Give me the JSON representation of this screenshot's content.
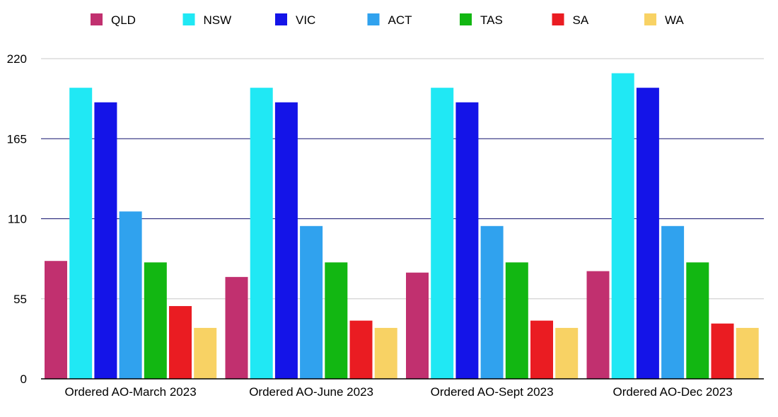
{
  "chart_data": {
    "type": "bar",
    "title": "",
    "xlabel": "",
    "ylabel": "",
    "ylim": [
      0,
      220
    ],
    "yticks": [
      0,
      55,
      110,
      165,
      220
    ],
    "categories": [
      "Ordered AO-March 2023",
      "Ordered AO-June 2023",
      "Ordered AO-Sept 2023",
      "Ordered AO-Dec 2023"
    ],
    "series": [
      {
        "name": "QLD",
        "color": "#c1306f",
        "values": [
          81,
          70,
          73,
          74
        ]
      },
      {
        "name": "NSW",
        "color": "#20e8f4",
        "values": [
          200,
          200,
          200,
          210
        ]
      },
      {
        "name": "VIC",
        "color": "#1414e8",
        "values": [
          190,
          190,
          190,
          200
        ]
      },
      {
        "name": "ACT",
        "color": "#30a2ee",
        "values": [
          115,
          105,
          105,
          105
        ]
      },
      {
        "name": "TAS",
        "color": "#12b712",
        "values": [
          80,
          80,
          80,
          80
        ]
      },
      {
        "name": "SA",
        "color": "#ea1c22",
        "values": [
          50,
          40,
          40,
          38
        ]
      },
      {
        "name": "WA",
        "color": "#f8d264",
        "values": [
          35,
          35,
          35,
          35
        ]
      }
    ],
    "legend_position": "top",
    "grid": true,
    "gridline_colors": [
      "#c8c8c8",
      "#c8c8c8",
      "#14146e",
      "#14146e",
      "#c8c8c8"
    ]
  }
}
